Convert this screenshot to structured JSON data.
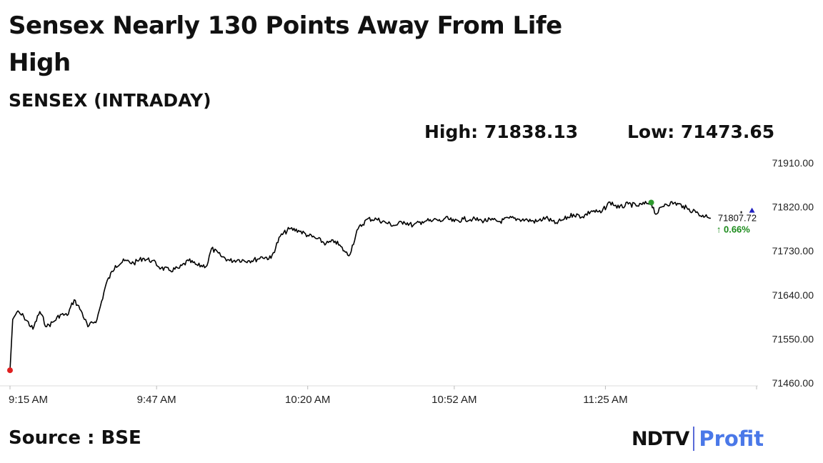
{
  "headline": "Sensex Nearly 130 Points Away From Life High",
  "subtitle": "SENSEX (INTRADAY)",
  "stats": {
    "high": "High: 71838.13",
    "low": "Low: 71473.65"
  },
  "source": "Source : BSE",
  "logo": {
    "left": "NDTV",
    "right": "Profit"
  },
  "colors": {
    "line": "#000000",
    "start_marker": "#e02020",
    "high_marker": "#2e9a2e",
    "change_text": "#1a8a1a",
    "prev_close_marker": "#2020c0",
    "grid": "#dddddd"
  },
  "chart_data": {
    "type": "line",
    "title": "SENSEX (INTRADAY)",
    "ylim": [
      71460,
      71910
    ],
    "yticks": [
      "71910.00",
      "71820.00",
      "71730.00",
      "71640.00",
      "71550.00",
      "71460.00"
    ],
    "ytick_values": [
      71910,
      71820,
      71730,
      71640,
      71550,
      71460
    ],
    "xticks": [
      "9:15 AM",
      "9:47 AM",
      "10:20 AM",
      "10:52 AM",
      "11:25 AM"
    ],
    "xtick_values": [
      0,
      32,
      65,
      97,
      130
    ],
    "xlim": [
      0,
      163
    ],
    "last_value_label": "71807.72",
    "change_label": "↑ 0.66%",
    "high_point": {
      "x": 140,
      "y": 71829
    },
    "start_point": {
      "x": 0,
      "y": 71486
    },
    "prev_close_x": 162,
    "series": [
      {
        "x": [
          0,
          0.6,
          1.5,
          3,
          5,
          6.5,
          8,
          9.5,
          11,
          12.5,
          14,
          15.5,
          17,
          19,
          21,
          23,
          25,
          27,
          29,
          31,
          33,
          35,
          37,
          39,
          41,
          43,
          44,
          46,
          48,
          50,
          52,
          54,
          55,
          57,
          59,
          61,
          63,
          65,
          67,
          69,
          71,
          73,
          74,
          76,
          78,
          80,
          82,
          84,
          86,
          88,
          90,
          91,
          92,
          93,
          94,
          95,
          97,
          99,
          101,
          103,
          105,
          107,
          109,
          111,
          113,
          115,
          117,
          119,
          121,
          123,
          125,
          127,
          129,
          131,
          133,
          135,
          137,
          139,
          140,
          141,
          143,
          145,
          147,
          148,
          150,
          151,
          152,
          153
        ],
        "y": [
          71486,
          71590,
          71605,
          71596,
          71570,
          71606,
          71575,
          71585,
          71600,
          71598,
          71630,
          71608,
          71575,
          71590,
          71663,
          71700,
          71710,
          71705,
          71715,
          71710,
          71695,
          71690,
          71695,
          71710,
          71700,
          71700,
          71735,
          71720,
          71710,
          71712,
          71710,
          71713,
          71718,
          71715,
          71760,
          71775,
          71772,
          71762,
          71755,
          71745,
          71750,
          71730,
          71720,
          71775,
          71795,
          71795,
          71788,
          71782,
          71790,
          71782,
          71790,
          71792,
          71790,
          71795,
          71790,
          71797,
          71790,
          71795,
          71795,
          71792,
          71793,
          71790,
          71797,
          71795,
          71793,
          71790,
          71798,
          71786,
          71795,
          71805,
          71800,
          71812,
          71808,
          71830,
          71818,
          71826,
          71822,
          71827,
          71829,
          71805,
          71826,
          71828,
          71822,
          71815,
          71810,
          71800,
          71804,
          71797
        ]
      }
    ]
  }
}
